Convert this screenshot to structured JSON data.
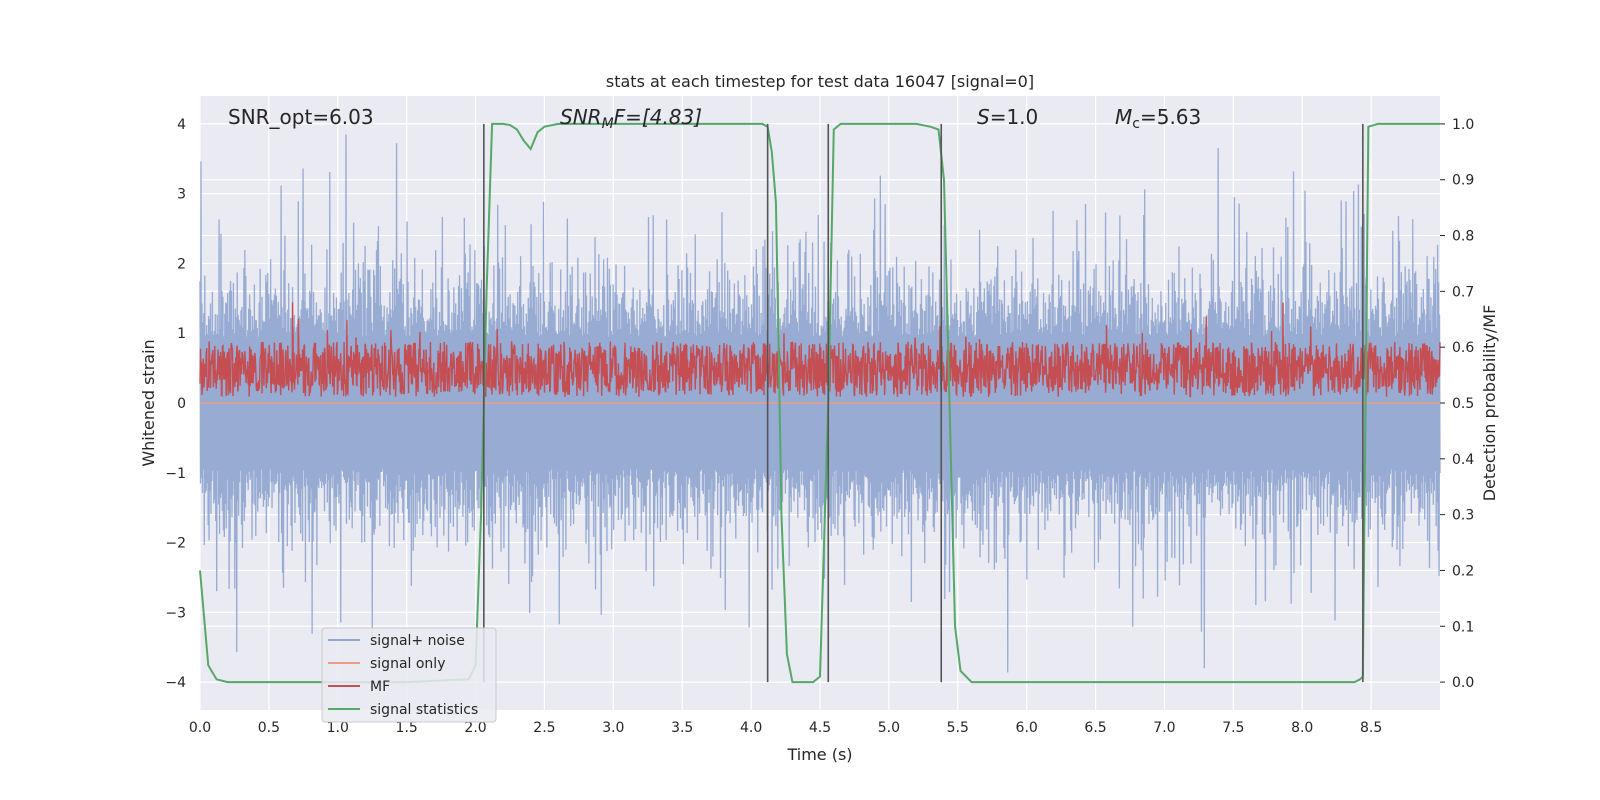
{
  "chart_data": {
    "type": "line",
    "title": "stats at each timestep for test data 16047 [signal=0]",
    "xlabel": "Time (s)",
    "ylabel": "Whitened strain",
    "ylabel_right": "Detection probability/MF",
    "xlim": [
      0,
      9.0
    ],
    "ylim": [
      -4.4,
      4.4
    ],
    "ylim_right": [
      -0.05,
      1.05
    ],
    "x_ticks": [
      0.0,
      0.5,
      1.0,
      1.5,
      2.0,
      2.5,
      3.0,
      3.5,
      4.0,
      4.5,
      5.0,
      5.5,
      6.0,
      6.5,
      7.0,
      7.5,
      8.0,
      8.5
    ],
    "x_tick_labels": [
      "0.0",
      "0.5",
      "1.0",
      "1.5",
      "2.0",
      "2.5",
      "3.0",
      "3.5",
      "4.0",
      "4.5",
      "5.0",
      "5.5",
      "6.0",
      "6.5",
      "7.0",
      "7.5",
      "8.0",
      "8.5"
    ],
    "y_ticks": [
      -4,
      -3,
      -2,
      -1,
      0,
      1,
      2,
      3,
      4
    ],
    "y_tick_labels": [
      "−4",
      "−3",
      "−2",
      "−1",
      "0",
      "1",
      "2",
      "3",
      "4"
    ],
    "y_ticks_right": [
      0.0,
      0.1,
      0.2,
      0.3,
      0.4,
      0.5,
      0.6,
      0.7,
      0.8,
      0.9,
      1.0
    ],
    "y_tick_labels_right": [
      "0.0",
      "0.1",
      "0.2",
      "0.3",
      "0.4",
      "0.5",
      "0.6",
      "0.7",
      "0.8",
      "0.9",
      "1.0"
    ],
    "annotations": [
      {
        "text": "SNR_opt=6.03",
        "x": 0.2,
        "y": 4.0
      },
      {
        "text": "SNR_MF=[4.83]",
        "main": "SNR",
        "sub": "M",
        "rest": "F=[4.83]",
        "x": 2.6,
        "y": 4.0
      },
      {
        "text": "S=1.0",
        "main": "S",
        "rest": "=1.0",
        "x": 5.6,
        "y": 4.0
      },
      {
        "text": "M_c=5.63",
        "main": "M",
        "sub": "c",
        "rest": "=5.63",
        "x": 6.6,
        "y": 4.0
      }
    ],
    "vlines": {
      "x": [
        2.06,
        4.12,
        4.56,
        5.38,
        8.44
      ],
      "ymin": -4.0,
      "ymax": 4.0,
      "color": "#555555"
    },
    "series": [
      {
        "name": "signal+ noise",
        "color": "#92a8d1",
        "kind": "noise",
        "amplitude": 1.6,
        "seed": 7,
        "samples": 2600
      },
      {
        "name": "signal only",
        "color": "#ec9c82",
        "kind": "flat",
        "y": 0.0
      },
      {
        "name": "MF",
        "color": "#c44e52",
        "kind": "mf",
        "amplitude": 0.3,
        "seed": 3,
        "samples": 2600
      },
      {
        "name": "signal statistics",
        "color": "#55a868",
        "axis": "right",
        "x": [
          0.0,
          0.06,
          0.12,
          0.2,
          0.5,
          1.0,
          1.5,
          1.95,
          2.0,
          2.04,
          2.08,
          2.12,
          2.16,
          2.2,
          2.25,
          2.3,
          2.35,
          2.4,
          2.45,
          2.5,
          2.6,
          2.8,
          3.2,
          3.6,
          4.0,
          4.08,
          4.12,
          4.15,
          4.18,
          4.2,
          4.22,
          4.26,
          4.3,
          4.35,
          4.45,
          4.5,
          4.56,
          4.6,
          4.65,
          4.7,
          4.8,
          5.0,
          5.2,
          5.3,
          5.36,
          5.4,
          5.44,
          5.48,
          5.52,
          5.6,
          6.0,
          7.0,
          8.0,
          8.38,
          8.42,
          8.44,
          8.46,
          8.48,
          8.55,
          8.7,
          9.0
        ],
        "y": [
          0.2,
          0.03,
          0.005,
          0.0,
          0.0,
          0.0,
          0.0,
          0.005,
          0.03,
          0.3,
          0.7,
          1.0,
          1.0,
          1.0,
          0.998,
          0.99,
          0.97,
          0.955,
          0.985,
          0.995,
          1.0,
          1.0,
          1.0,
          1.0,
          1.0,
          1.0,
          0.995,
          0.95,
          0.86,
          0.6,
          0.3,
          0.05,
          0.0,
          0.0,
          0.0,
          0.01,
          0.5,
          0.99,
          1.0,
          1.0,
          1.0,
          1.0,
          1.0,
          0.995,
          0.99,
          0.9,
          0.5,
          0.1,
          0.02,
          0.0,
          0.0,
          0.0,
          0.0,
          0.0,
          0.005,
          0.01,
          0.5,
          0.995,
          1.0,
          1.0,
          1.0
        ]
      }
    ],
    "legend": {
      "position": "lower-left"
    },
    "grid": true
  }
}
